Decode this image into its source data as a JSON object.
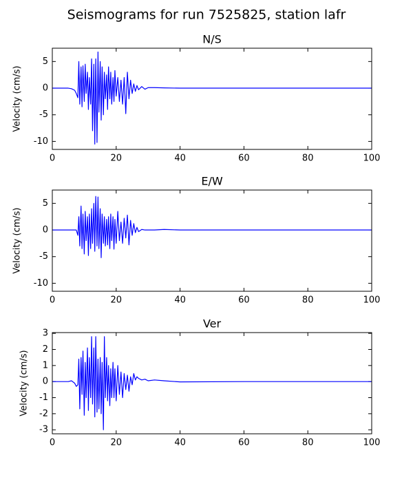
{
  "title": "Seismograms for run 7525825, station lafr",
  "chart_data": [
    {
      "type": "line",
      "title": "N/S",
      "ylabel": "Velocity (cm/s)",
      "color": "#0000ff",
      "xlim": [
        0,
        100
      ],
      "ylim": [
        -11.5,
        7.5
      ],
      "xticks": [
        0,
        20,
        40,
        60,
        80,
        100
      ],
      "yticks": [
        -10,
        -5,
        0,
        5
      ],
      "x": [
        0,
        5,
        6,
        7,
        7.5,
        8,
        8.3,
        8.6,
        9,
        9.3,
        9.6,
        10,
        10.3,
        10.6,
        11,
        11.3,
        11.6,
        12,
        12.3,
        12.6,
        13,
        13.3,
        13.6,
        14,
        14.3,
        14.6,
        15,
        15.3,
        15.6,
        16,
        16.3,
        16.6,
        17,
        17.3,
        17.6,
        18,
        18.3,
        18.6,
        19,
        19.3,
        19.6,
        20,
        20.5,
        21,
        21.5,
        22,
        22.5,
        23,
        23.5,
        24,
        24.5,
        25,
        25.5,
        26,
        26.5,
        27,
        28,
        29,
        30,
        32,
        35,
        40,
        60,
        100
      ],
      "values": [
        0,
        0,
        -0.1,
        -0.4,
        -1,
        -1.8,
        5,
        -3,
        4,
        -3.5,
        4.2,
        -2.5,
        4.5,
        -1,
        3,
        -4,
        2,
        -3,
        5.5,
        -8,
        4.5,
        -10.5,
        5.5,
        -10.2,
        6.8,
        -4.5,
        5,
        -6,
        4,
        -5,
        3,
        -2,
        2.5,
        -4,
        4,
        -2,
        3,
        -3,
        2,
        -2.5,
        3.3,
        -1.5,
        2,
        -2.5,
        1.5,
        -3,
        2,
        -4.8,
        3,
        -2,
        1.5,
        -1,
        0.8,
        -0.6,
        0.5,
        -0.3,
        0.3,
        -0.2,
        0.1,
        0.1,
        0.05,
        0,
        0,
        0
      ]
    },
    {
      "type": "line",
      "title": "E/W",
      "ylabel": "Velocity (cm/s)",
      "color": "#0000ff",
      "xlim": [
        0,
        100
      ],
      "ylim": [
        -11.5,
        7.5
      ],
      "xticks": [
        0,
        20,
        40,
        60,
        80,
        100
      ],
      "yticks": [
        -10,
        -5,
        0,
        5
      ],
      "x": [
        0,
        5,
        6,
        7,
        7.5,
        8,
        8.3,
        8.6,
        9,
        9.3,
        9.6,
        10,
        10.3,
        10.6,
        11,
        11.3,
        11.6,
        12,
        12.3,
        12.6,
        13,
        13.3,
        13.6,
        14,
        14.3,
        14.6,
        15,
        15.3,
        15.6,
        16,
        16.3,
        16.6,
        17,
        17.3,
        17.6,
        18,
        18.3,
        18.6,
        19,
        19.3,
        19.6,
        20,
        20.5,
        21,
        21.5,
        22,
        22.5,
        23,
        23.5,
        24,
        24.5,
        25,
        25.5,
        26,
        26.5,
        27,
        28,
        29,
        30,
        32,
        35,
        40,
        60,
        100
      ],
      "values": [
        0,
        0,
        0,
        0,
        0,
        -1,
        2.5,
        -3,
        4.5,
        -3.5,
        3,
        -4.5,
        3.5,
        -2,
        2.5,
        -4.8,
        3,
        -3.5,
        4,
        -2.5,
        5,
        -4,
        6.3,
        -3,
        6.2,
        -3.5,
        4,
        -5.2,
        3,
        -2.5,
        2.5,
        -3,
        2,
        -2.8,
        2.5,
        -3.5,
        3,
        -2,
        2.5,
        -3.6,
        2,
        -2.5,
        3.5,
        -2,
        1.5,
        -2.5,
        2.2,
        -1.5,
        2.8,
        -2.8,
        1.8,
        -1,
        1.2,
        -0.5,
        0.5,
        -0.3,
        0.1,
        0,
        0,
        0,
        0.1,
        0,
        0,
        0
      ]
    },
    {
      "type": "line",
      "title": "Ver",
      "ylabel": "Velocity (cm/s)",
      "color": "#0000ff",
      "xlim": [
        0,
        100
      ],
      "ylim": [
        -3.25,
        3.05
      ],
      "xticks": [
        0,
        20,
        40,
        60,
        80,
        100
      ],
      "yticks": [
        -3,
        -2,
        -1,
        0,
        1,
        2,
        3
      ],
      "x": [
        0,
        5,
        6,
        7,
        7.5,
        8,
        8.3,
        8.6,
        9,
        9.3,
        9.6,
        10,
        10.3,
        10.6,
        11,
        11.3,
        11.6,
        12,
        12.3,
        12.6,
        13,
        13.3,
        13.6,
        14,
        14.3,
        14.6,
        15,
        15.3,
        15.6,
        16,
        16.3,
        16.6,
        17,
        17.3,
        17.6,
        18,
        18.3,
        18.6,
        19,
        19.3,
        19.6,
        20,
        20.5,
        21,
        21.5,
        22,
        22.5,
        23,
        23.5,
        24,
        24.5,
        25,
        25.5,
        26,
        26.5,
        27,
        28,
        29,
        30,
        32,
        35,
        40,
        60,
        100
      ],
      "values": [
        0,
        0,
        0.05,
        -0.1,
        -0.3,
        -0.2,
        1.4,
        -1.7,
        1.5,
        -0.8,
        1.9,
        -2.1,
        1.2,
        -1,
        2.1,
        -1.8,
        1.5,
        -1,
        2.8,
        -1.4,
        2.1,
        -2.2,
        2.8,
        -1.9,
        1.4,
        -1.7,
        1.5,
        -2,
        1.2,
        -3,
        2.8,
        -1,
        1.5,
        -1.2,
        1,
        -1.5,
        0.8,
        -1,
        1.2,
        -1,
        0.8,
        -1.2,
        1,
        -0.8,
        0.6,
        -1,
        0.5,
        -0.5,
        0.4,
        -0.6,
        0.3,
        -0.2,
        0.5,
        0.1,
        0.3,
        0.2,
        0.1,
        0.15,
        0.05,
        0.1,
        0.05,
        -0.02,
        0,
        0
      ]
    }
  ]
}
